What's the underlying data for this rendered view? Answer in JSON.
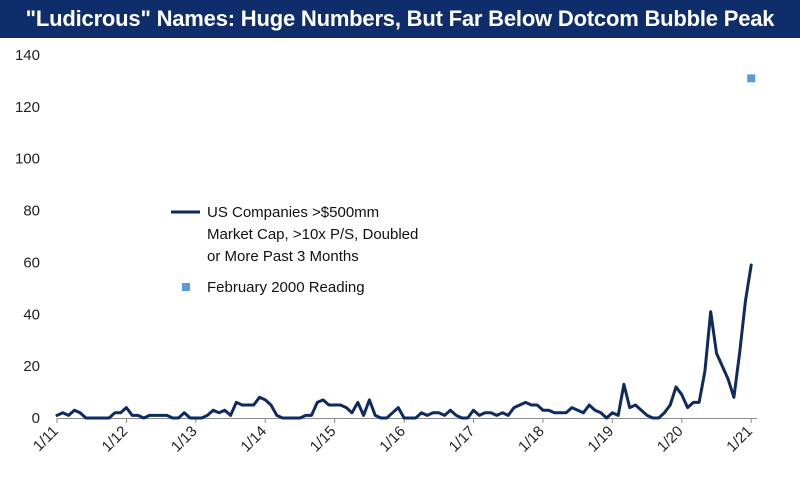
{
  "chart_data": {
    "type": "line",
    "title": "\"Ludicrous\" Names: Huge Numbers, But Far Below Dotcom Bubble Peak",
    "xlabel": "",
    "ylabel": "",
    "ylim": [
      0,
      140
    ],
    "yticks": [
      0,
      20,
      40,
      60,
      80,
      100,
      120,
      140
    ],
    "xlim": [
      0,
      121
    ],
    "xticks": [
      {
        "pos": 0,
        "label": "1/11"
      },
      {
        "pos": 12,
        "label": "1/12"
      },
      {
        "pos": 24,
        "label": "1/13"
      },
      {
        "pos": 36,
        "label": "1/14"
      },
      {
        "pos": 48,
        "label": "1/15"
      },
      {
        "pos": 60,
        "label": "1/16"
      },
      {
        "pos": 72,
        "label": "1/17"
      },
      {
        "pos": 84,
        "label": "1/18"
      },
      {
        "pos": 96,
        "label": "1/19"
      },
      {
        "pos": 108,
        "label": "1/20"
      },
      {
        "pos": 120,
        "label": "1/21"
      }
    ],
    "grid": false,
    "legend_position": "center-left",
    "series": [
      {
        "name": "US Companies >$500mm Market Cap, >10x P/S, Doubled or More Past 3 Months",
        "legend_lines": [
          "US Companies >$500mm",
          "Market Cap, >10x P/S, Doubled",
          "or More Past 3 Months"
        ],
        "kind": "line",
        "color": "#0f2a5e",
        "values": [
          1,
          2,
          1,
          3,
          2,
          0,
          0,
          0,
          0,
          0,
          2,
          2,
          4,
          1,
          1,
          0,
          1,
          1,
          1,
          1,
          0,
          0,
          2,
          0,
          0,
          0,
          1,
          3,
          2,
          3,
          1,
          6,
          5,
          5,
          5,
          8,
          7,
          5,
          1,
          0,
          0,
          0,
          0,
          1,
          1,
          6,
          7,
          5,
          5,
          5,
          4,
          2,
          6,
          1,
          7,
          1,
          0,
          0,
          2,
          4,
          0,
          0,
          0,
          2,
          1,
          2,
          2,
          1,
          3,
          1,
          0,
          0,
          3,
          1,
          2,
          2,
          1,
          2,
          1,
          4,
          5,
          6,
          5,
          5,
          3,
          3,
          2,
          2,
          2,
          4,
          3,
          2,
          5,
          3,
          2,
          0,
          2,
          1,
          13,
          4,
          5,
          3,
          1,
          0,
          0,
          2,
          5,
          12,
          9,
          4,
          6,
          6,
          18,
          41,
          25,
          20,
          15,
          8,
          25,
          45,
          59
        ]
      },
      {
        "name": "February 2000 Reading",
        "kind": "marker",
        "color": "#5b9bd5",
        "x": 120,
        "y": 131
      }
    ]
  }
}
